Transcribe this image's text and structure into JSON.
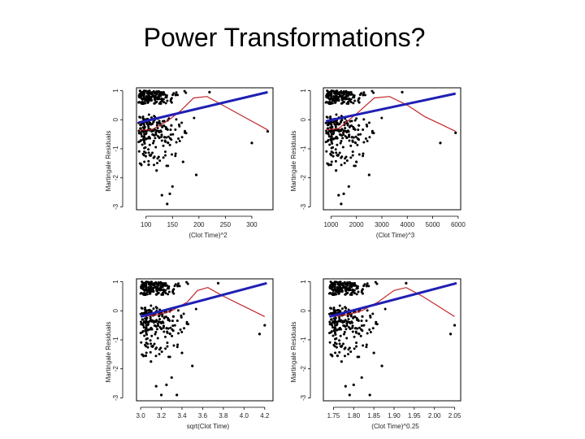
{
  "slide": {
    "title": "Power Transformations?"
  },
  "colors": {
    "points": "#000000",
    "fit_line": "#1f1fb4",
    "smooth_line": "#c0282a",
    "frame": "#000000"
  },
  "chart_data": [
    {
      "type": "scatter",
      "xlabel": "(Clot Time)^2",
      "ylabel": "Martingale Residuals",
      "xlim": [
        82,
        340
      ],
      "ylim": [
        -3.1,
        1.1
      ],
      "xticks": [
        100,
        150,
        200,
        250,
        300
      ],
      "xtick_labels": [
        "100",
        "150",
        "200",
        "250",
        "300"
      ],
      "yticks": [
        1,
        0,
        -1,
        -2,
        -3
      ],
      "ytick_labels": [
        "1",
        "0",
        "-1",
        "-2",
        "-3"
      ],
      "transform": "square",
      "linear_fit": {
        "x": [
          86,
          330
        ],
        "y": [
          -0.1,
          0.95
        ]
      },
      "smooth": {
        "x": [
          88,
          110,
          140,
          165,
          190,
          215,
          240,
          270,
          300,
          330
        ],
        "y": [
          -0.35,
          -0.35,
          -0.05,
          0.3,
          0.75,
          0.8,
          0.55,
          0.25,
          -0.05,
          -0.35
        ]
      },
      "points": [
        [
          330,
          -0.4
        ],
        [
          300,
          -0.8
        ],
        [
          220,
          0.95
        ],
        [
          195,
          -1.9
        ],
        [
          170,
          -1.45
        ],
        [
          150,
          -2.3
        ],
        [
          145,
          -2.55
        ],
        [
          130,
          -2.6
        ],
        [
          140,
          -2.9
        ],
        [
          120,
          -1.75
        ],
        [
          105,
          -1.55
        ]
      ]
    },
    {
      "type": "scatter",
      "xlabel": "(Clot Time)^3",
      "ylabel": "Martingale Residuals",
      "xlim": [
        700,
        6100
      ],
      "ylim": [
        -3.1,
        1.1
      ],
      "xticks": [
        1000,
        2000,
        3000,
        4000,
        5000,
        6000
      ],
      "xtick_labels": [
        "1000",
        "2000",
        "3000",
        "4000",
        "5000",
        "6000"
      ],
      "yticks": [
        1,
        0,
        -1,
        -2,
        -3
      ],
      "ytick_labels": [
        "1",
        "0",
        "-1",
        "-2",
        "-3"
      ],
      "transform": "cube",
      "linear_fit": {
        "x": [
          800,
          5900
        ],
        "y": [
          -0.05,
          0.9
        ]
      },
      "smooth": {
        "x": [
          800,
          1300,
          2000,
          2700,
          3300,
          4000,
          4700,
          5300,
          5900
        ],
        "y": [
          -0.35,
          -0.3,
          0.2,
          0.75,
          0.8,
          0.5,
          0.1,
          -0.15,
          -0.4
        ]
      },
      "points": [
        [
          5900,
          -0.45
        ],
        [
          5300,
          -0.8
        ],
        [
          3800,
          0.95
        ],
        [
          2500,
          -1.9
        ],
        [
          2000,
          -1.45
        ],
        [
          1700,
          -2.3
        ],
        [
          1500,
          -2.55
        ],
        [
          1300,
          -2.6
        ],
        [
          1400,
          -2.9
        ],
        [
          1200,
          -1.75
        ],
        [
          1000,
          -1.55
        ]
      ]
    },
    {
      "type": "scatter",
      "xlabel": "sqrt(Clot Time)",
      "ylabel": "Martingale Residuals",
      "xlim": [
        2.96,
        4.28
      ],
      "ylim": [
        -3.1,
        1.1
      ],
      "xticks": [
        3.0,
        3.2,
        3.4,
        3.6,
        3.8,
        4.0,
        4.2
      ],
      "xtick_labels": [
        "3.0",
        "3.2",
        "3.4",
        "3.6",
        "3.8",
        "4.0",
        "4.2"
      ],
      "yticks": [
        1,
        0,
        -1,
        -2,
        -3
      ],
      "ytick_labels": [
        "1",
        "0",
        "-1",
        "-2",
        "-3"
      ],
      "transform": "sqrt",
      "linear_fit": {
        "x": [
          3.0,
          4.22
        ],
        "y": [
          -0.2,
          0.95
        ]
      },
      "smooth": {
        "x": [
          3.0,
          3.15,
          3.3,
          3.45,
          3.55,
          3.65,
          3.8,
          4.0,
          4.2
        ],
        "y": [
          -0.2,
          -0.15,
          0.0,
          0.3,
          0.7,
          0.8,
          0.5,
          0.15,
          -0.2
        ]
      },
      "points": [
        [
          4.2,
          -0.5
        ],
        [
          4.15,
          -0.8
        ],
        [
          3.75,
          0.95
        ],
        [
          3.5,
          -1.9
        ],
        [
          3.4,
          -1.45
        ],
        [
          3.3,
          -2.3
        ],
        [
          3.25,
          -2.55
        ],
        [
          3.15,
          -2.6
        ],
        [
          3.2,
          -2.9
        ],
        [
          3.1,
          -1.75
        ],
        [
          3.05,
          -1.55
        ],
        [
          3.35,
          -2.9
        ]
      ]
    },
    {
      "type": "scatter",
      "xlabel": "(Clot Time)^0.25",
      "ylabel": "Martingale Residuals",
      "xlim": [
        1.725,
        2.065
      ],
      "ylim": [
        -3.1,
        1.1
      ],
      "xticks": [
        1.75,
        1.8,
        1.85,
        1.9,
        1.95,
        2.0,
        2.05
      ],
      "xtick_labels": [
        "1.75",
        "1.80",
        "1.85",
        "1.90",
        "1.95",
        "2.00",
        "2.05"
      ],
      "yticks": [
        1,
        0,
        -1,
        -2,
        -3
      ],
      "ytick_labels": [
        "1",
        "0",
        "-1",
        "-2",
        "-3"
      ],
      "transform": "fourth_root",
      "linear_fit": {
        "x": [
          1.74,
          2.055
        ],
        "y": [
          -0.2,
          0.95
        ]
      },
      "smooth": {
        "x": [
          1.74,
          1.78,
          1.82,
          1.86,
          1.9,
          1.93,
          1.97,
          2.01,
          2.05
        ],
        "y": [
          -0.2,
          -0.15,
          0.0,
          0.3,
          0.7,
          0.8,
          0.5,
          0.15,
          -0.2
        ]
      },
      "points": [
        [
          2.05,
          -0.5
        ],
        [
          2.04,
          -0.8
        ],
        [
          1.93,
          0.95
        ],
        [
          1.87,
          -1.9
        ],
        [
          1.85,
          -1.45
        ],
        [
          1.82,
          -2.3
        ],
        [
          1.8,
          -2.55
        ],
        [
          1.78,
          -2.6
        ],
        [
          1.79,
          -2.9
        ],
        [
          1.77,
          -1.75
        ],
        [
          1.76,
          -1.55
        ],
        [
          1.84,
          -2.9
        ]
      ]
    }
  ]
}
